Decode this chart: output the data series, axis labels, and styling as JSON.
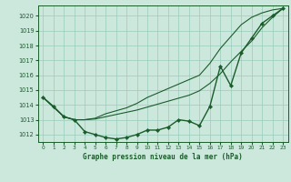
{
  "title": "Graphe pression niveau de la mer (hPa)",
  "bg_color": "#cce8dd",
  "grid_color": "#99ccbb",
  "line_color": "#1a5c2a",
  "xlim": [
    -0.5,
    23.5
  ],
  "ylim": [
    1011.5,
    1020.7
  ],
  "yticks": [
    1012,
    1013,
    1014,
    1015,
    1016,
    1017,
    1018,
    1019,
    1020
  ],
  "xticks": [
    0,
    1,
    2,
    3,
    4,
    5,
    6,
    7,
    8,
    9,
    10,
    11,
    12,
    13,
    14,
    15,
    16,
    17,
    18,
    19,
    20,
    21,
    22,
    23
  ],
  "series": {
    "line_markers": {
      "x": [
        0,
        1,
        2,
        3,
        4,
        5,
        6,
        7,
        8,
        9,
        10,
        11,
        12,
        13,
        14,
        15,
        16,
        17,
        18,
        19,
        20,
        21,
        22,
        23
      ],
      "y": [
        1014.5,
        1013.9,
        1013.2,
        1013.0,
        1012.2,
        1012.0,
        1011.8,
        1011.7,
        1011.8,
        1012.0,
        1012.3,
        1012.3,
        1012.5,
        1013.0,
        1012.9,
        1012.6,
        1013.9,
        1016.6,
        1015.3,
        1017.5,
        1018.5,
        1019.5,
        1020.0,
        1020.5
      ],
      "linewidth": 1.0
    },
    "line_upper": {
      "x": [
        0,
        2,
        3,
        4,
        5,
        6,
        7,
        8,
        9,
        10,
        11,
        12,
        13,
        14,
        15,
        16,
        17,
        18,
        19,
        20,
        21,
        22,
        23
      ],
      "y": [
        1014.5,
        1013.2,
        1013.0,
        1013.0,
        1013.1,
        1013.4,
        1013.6,
        1013.8,
        1014.1,
        1014.5,
        1014.8,
        1015.1,
        1015.4,
        1015.7,
        1016.0,
        1016.8,
        1017.8,
        1018.6,
        1019.4,
        1019.9,
        1020.2,
        1020.4,
        1020.5
      ],
      "linewidth": 0.8
    },
    "line_lower": {
      "x": [
        0,
        2,
        3,
        4,
        5,
        6,
        7,
        8,
        9,
        10,
        11,
        12,
        13,
        14,
        15,
        16,
        17,
        18,
        19,
        20,
        21,
        22,
        23
      ],
      "y": [
        1014.5,
        1013.2,
        1013.0,
        1013.0,
        1013.05,
        1013.2,
        1013.35,
        1013.5,
        1013.65,
        1013.85,
        1014.05,
        1014.25,
        1014.45,
        1014.65,
        1014.95,
        1015.45,
        1016.1,
        1016.9,
        1017.6,
        1018.3,
        1019.2,
        1019.9,
        1020.5
      ],
      "linewidth": 0.8
    }
  }
}
